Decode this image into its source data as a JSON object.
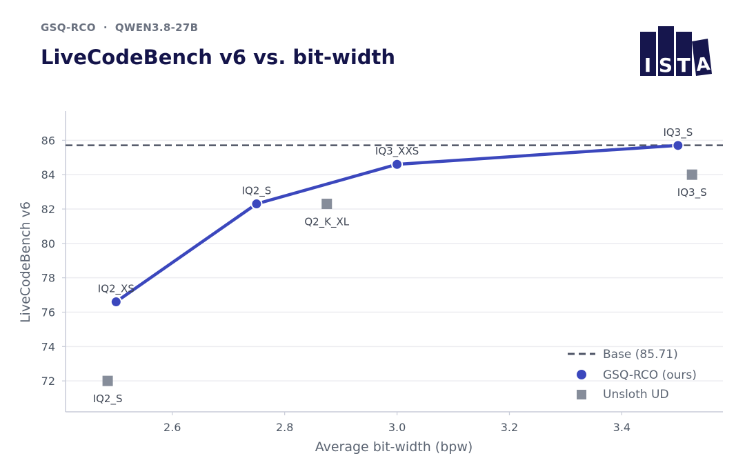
{
  "header": {
    "subtitle": "GSQ-RCO  ·  QWEN3.8-27B",
    "title": "LiveCodeBench v6 vs. bit-width",
    "logo_text": "ISTA"
  },
  "colors": {
    "gsq": "#3b47bd",
    "unsloth": "#868d9a",
    "base": "#4f5566",
    "title": "#14144a",
    "logo": "#16164d"
  },
  "chart_data": {
    "type": "line",
    "xlabel": "Average bit-width (bpw)",
    "ylabel": "LiveCodeBench v6",
    "xlim": [
      2.41,
      3.58
    ],
    "ylim": [
      70.2,
      87.7
    ],
    "xticks": [
      2.6,
      2.8,
      3.0,
      3.2,
      3.4
    ],
    "xtick_labels": [
      "2.6",
      "2.8",
      "3.0",
      "3.2",
      "3.4"
    ],
    "yticks": [
      72,
      74,
      76,
      78,
      80,
      82,
      84,
      86
    ],
    "ytick_labels": [
      "72",
      "74",
      "76",
      "78",
      "80",
      "82",
      "84",
      "86"
    ],
    "grid": "horizontal",
    "legend_position": "lower-right",
    "baseline": {
      "name": "Base (85.71)",
      "value": 85.71
    },
    "series": [
      {
        "name": "GSQ-RCO (ours)",
        "marker": "circle",
        "line": true,
        "points": [
          {
            "x": 2.5,
            "y": 76.6,
            "label": "IQ2_XS"
          },
          {
            "x": 2.75,
            "y": 82.3,
            "label": "IQ2_S"
          },
          {
            "x": 3.0,
            "y": 84.6,
            "label": "IQ3_XXS"
          },
          {
            "x": 3.5,
            "y": 85.7,
            "label": "IQ3_S"
          }
        ]
      },
      {
        "name": "Unsloth UD",
        "marker": "square",
        "line": false,
        "points": [
          {
            "x": 2.485,
            "y": 72.0,
            "label": "IQ2_S"
          },
          {
            "x": 2.875,
            "y": 82.3,
            "label": "Q2_K_XL"
          },
          {
            "x": 3.525,
            "y": 84.0,
            "label": "IQ3_S"
          }
        ]
      }
    ]
  }
}
